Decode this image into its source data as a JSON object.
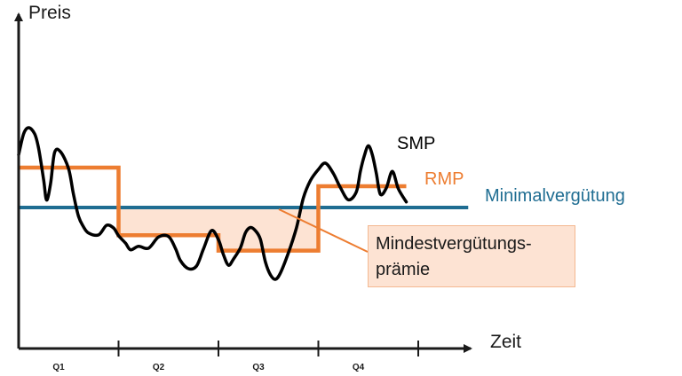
{
  "chart_data": {
    "type": "line",
    "xlabel": "Zeit",
    "ylabel": "Preis",
    "categories": [
      "Q1",
      "Q2",
      "Q3",
      "Q4"
    ],
    "ylim": [
      0,
      10
    ],
    "series": [
      {
        "name": "SMP",
        "color": "#000000",
        "x": [
          0.0,
          0.05,
          0.1,
          0.16,
          0.2,
          0.25,
          0.28,
          0.32,
          0.36,
          0.42,
          0.5,
          0.55,
          0.6,
          0.65,
          0.7,
          0.8,
          0.88,
          0.95,
          1.0,
          1.07,
          1.12,
          1.2,
          1.3,
          1.4,
          1.5,
          1.57,
          1.62,
          1.7,
          1.78,
          1.85,
          1.93,
          2.0,
          2.05,
          2.1,
          2.15,
          2.22,
          2.27,
          2.32,
          2.37,
          2.42,
          2.47,
          2.52,
          2.57,
          2.62,
          2.7,
          2.78,
          2.85,
          2.92,
          3.0,
          3.07,
          3.15,
          3.22,
          3.3,
          3.38,
          3.42,
          3.46,
          3.5,
          3.54,
          3.58,
          3.62,
          3.68,
          3.74,
          3.8,
          3.88
        ],
        "y": [
          7.28,
          8.07,
          8.3,
          8.07,
          7.52,
          6.35,
          5.58,
          6.21,
          7.37,
          7.39,
          6.75,
          5.77,
          4.96,
          4.57,
          4.34,
          4.27,
          4.63,
          4.53,
          4.24,
          3.96,
          3.71,
          3.84,
          3.77,
          4.19,
          4.21,
          3.76,
          3.3,
          3.0,
          3.1,
          3.74,
          4.43,
          4.09,
          3.53,
          3.13,
          3.36,
          3.79,
          4.35,
          4.55,
          4.43,
          4.1,
          3.25,
          2.77,
          2.6,
          2.84,
          3.6,
          4.53,
          5.66,
          6.31,
          6.73,
          6.97,
          6.58,
          6.05,
          5.59,
          5.89,
          6.66,
          7.25,
          7.62,
          7.28,
          6.58,
          5.8,
          6.03,
          6.66,
          6.01,
          5.51
        ]
      },
      {
        "name": "RMP",
        "color": "#ed7d31",
        "steps": [
          {
            "x0": 0.0,
            "x1": 1.0,
            "y": 6.8
          },
          {
            "x0": 1.0,
            "x1": 2.0,
            "y": 4.26
          },
          {
            "x0": 2.0,
            "x1": 3.0,
            "y": 3.68
          },
          {
            "x0": 3.0,
            "x1": 3.88,
            "y": 6.1
          }
        ]
      },
      {
        "name": "Minimalvergütung",
        "color": "#1f6d92",
        "x": [
          0.0,
          4.5
        ],
        "y": [
          5.3,
          5.3
        ]
      }
    ],
    "annotations": [
      {
        "text_lines": [
          "Mindestvergütungs-",
          "prämie"
        ],
        "shaded_region": {
          "x0": 1.0,
          "x1": 3.0,
          "upper": "Minimalvergütung",
          "lower": "RMP"
        },
        "fill": "#fde3d3"
      }
    ]
  }
}
